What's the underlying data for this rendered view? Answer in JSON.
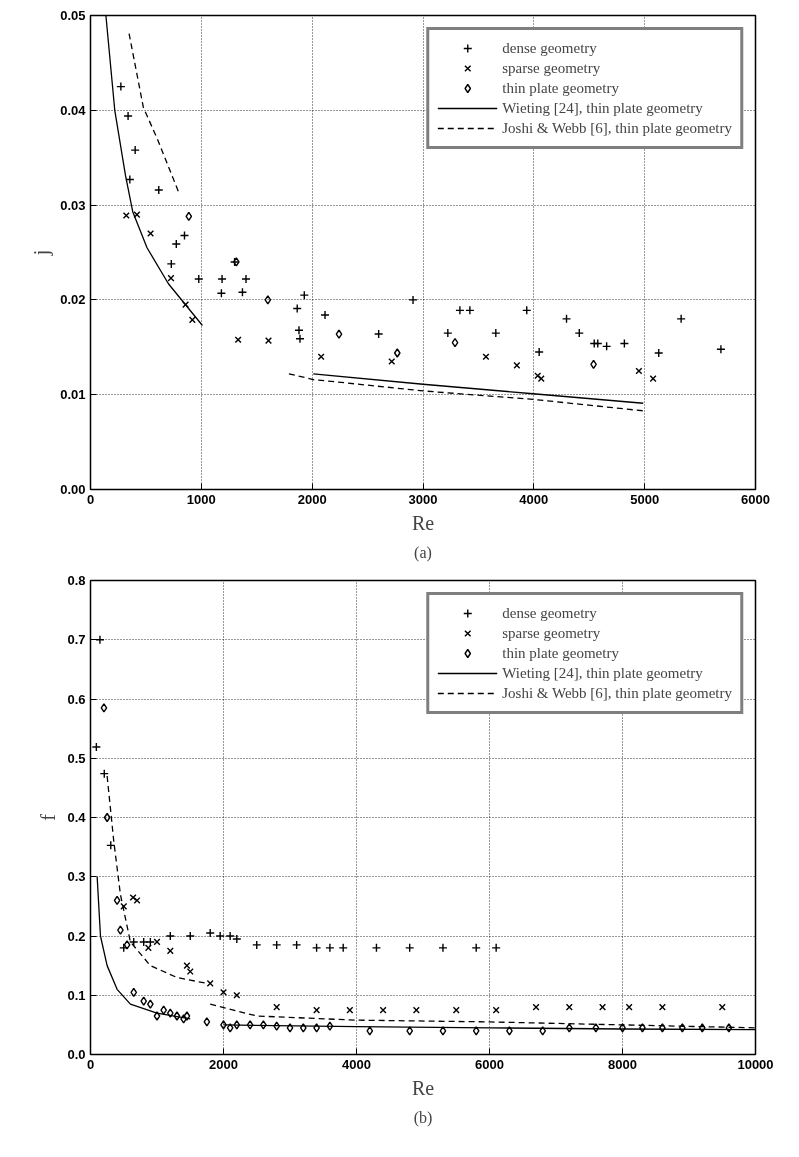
{
  "chart_data": [
    {
      "type": "scatter",
      "xlabel": "Re",
      "ylabel": "j",
      "annotations": [
        "(a)"
      ],
      "xlim": [
        0,
        6000
      ],
      "ylim": [
        0,
        0.05
      ],
      "xticks": [
        0,
        1000,
        2000,
        3000,
        4000,
        5000,
        6000
      ],
      "yticks": [
        {
          "value": 0,
          "label": "0.00"
        },
        {
          "value": 0.01,
          "label": "0.01"
        },
        {
          "value": 0.02,
          "label": "0.02"
        },
        {
          "value": 0.03,
          "label": "0.03"
        },
        {
          "value": 0.04,
          "label": "0.04"
        },
        {
          "value": 0.05,
          "label": "0.05"
        }
      ],
      "grid": true,
      "legend": "top right",
      "series": [
        {
          "name": "dense geometry",
          "color": "#000000",
          "marker": "cross",
          "x": [
            274,
            339,
            403,
            355,
            616,
            848,
            774,
            729,
            977,
            1187,
            1403,
            1181,
            1371,
            1300,
            1929,
            1865,
            2116,
            1881,
            1890,
            2600,
            2910,
            3333,
            3423,
            3224,
            3657,
            3936,
            4048,
            4295,
            4410,
            4545,
            4577,
            4657,
            4817,
            5127,
            5329,
            5688
          ],
          "values": [
            0.0425,
            0.0394,
            0.0358,
            0.0327,
            0.0316,
            0.0268,
            0.0259,
            0.0238,
            0.0222,
            0.0222,
            0.0222,
            0.0207,
            0.0208,
            0.024,
            0.0205,
            0.0191,
            0.0184,
            0.0168,
            0.0159,
            0.0164,
            0.02,
            0.0189,
            0.0189,
            0.0165,
            0.0165,
            0.0189,
            0.0145,
            0.018,
            0.0165,
            0.0154,
            0.0154,
            0.0151,
            0.0154,
            0.0144,
            0.018,
            0.0148
          ]
        },
        {
          "name": "sparse geometry",
          "color": "#000000",
          "marker": "x",
          "x": [
            323,
            419,
            542,
            726,
            858,
            919,
            1332,
            1606,
            2081,
            2718,
            3568,
            3847,
            4035,
            4067,
            4948,
            5076
          ],
          "values": [
            0.0289,
            0.029,
            0.027,
            0.0223,
            0.0195,
            0.0179,
            0.0158,
            0.0157,
            0.014,
            0.0135,
            0.014,
            0.0131,
            0.012,
            0.0117,
            0.0125,
            0.0117
          ]
        },
        {
          "name": "thin plate geometry",
          "color": "#000000",
          "marker": "diamond",
          "x": [
            887,
            1316,
            1600,
            2242,
            2768,
            3289,
            4539
          ],
          "values": [
            0.0288,
            0.024,
            0.02,
            0.0164,
            0.0144,
            0.0155,
            0.0132
          ]
        },
        {
          "name": "Wieting [24], thin plate geometry",
          "type": "line",
          "color": "#000000",
          "marker": "none",
          "line_style": "solid",
          "x": [
            139,
            219,
            316,
            381,
            510,
            703,
            1010
          ],
          "values": [
            0.05,
            0.04,
            0.0331,
            0.0293,
            0.0255,
            0.0217,
            0.0173
          ]
        },
        {
          "type": "line",
          "color": "#000000",
          "marker": "none",
          "line_style": "solid",
          "x": [
            2010,
            3000,
            3993,
            4987
          ],
          "values": [
            0.0122,
            0.0111,
            0.0101,
            0.0091
          ]
        },
        {
          "name": "Joshi & Webb [6], thin plate geometry",
          "type": "line",
          "color": "#000000",
          "marker": "none",
          "line_style": "dashed",
          "x": [
            348,
            477,
            606,
            794
          ],
          "values": [
            0.0481,
            0.0403,
            0.0369,
            0.0314
          ]
        },
        {
          "type": "line",
          "color": "#000000",
          "marker": "none",
          "line_style": "dashed",
          "x": [
            1790,
            2010,
            3000,
            4000,
            4987
          ],
          "values": [
            0.0122,
            0.0116,
            0.0104,
            0.0095,
            0.0083
          ]
        }
      ]
    },
    {
      "type": "scatter",
      "xlabel": "Re",
      "ylabel": "f",
      "annotations": [
        "(b)"
      ],
      "xlim": [
        0,
        10000
      ],
      "ylim": [
        0,
        0.8
      ],
      "xticks": [
        0,
        2000,
        4000,
        6000,
        8000,
        10000
      ],
      "yticks": [
        {
          "value": 0,
          "label": "0.0"
        },
        {
          "value": 0.1,
          "label": "0.1"
        },
        {
          "value": 0.2,
          "label": "0.2"
        },
        {
          "value": 0.3,
          "label": "0.3"
        },
        {
          "value": 0.4,
          "label": "0.4"
        },
        {
          "value": 0.5,
          "label": "0.5"
        },
        {
          "value": 0.6,
          "label": "0.6"
        },
        {
          "value": 0.7,
          "label": "0.7"
        },
        {
          "value": 0.8,
          "label": "0.8"
        }
      ],
      "grid": true,
      "legend": "top right",
      "series": [
        {
          "name": "dense geometry",
          "color": "#000000",
          "marker": "cross",
          "x": [
            142,
            88,
            207,
            305,
            500,
            650,
            800,
            900,
            1200,
            1500,
            1800,
            1950,
            2100,
            2200,
            2500,
            2800,
            3100,
            3400,
            3600,
            3800,
            4300,
            4800,
            5300,
            5800,
            6100
          ],
          "values": [
            0.7,
            0.519,
            0.474,
            0.353,
            0.18,
            0.19,
            0.19,
            0.19,
            0.2,
            0.2,
            0.205,
            0.2,
            0.2,
            0.195,
            0.185,
            0.185,
            0.185,
            0.18,
            0.18,
            0.18,
            0.18,
            0.18,
            0.18,
            0.18,
            0.18
          ]
        },
        {
          "name": "sparse geometry",
          "color": "#000000",
          "marker": "x",
          "x": [
            500,
            640,
            700,
            870,
            1000,
            1200,
            1450,
            1500,
            1800,
            2000,
            2200,
            2800,
            3400,
            3900,
            4400,
            4900,
            5500,
            6100,
            6700,
            7200,
            7700,
            8100,
            8600,
            9500
          ],
          "values": [
            0.25,
            0.265,
            0.26,
            0.18,
            0.19,
            0.175,
            0.15,
            0.14,
            0.12,
            0.105,
            0.1,
            0.08,
            0.075,
            0.075,
            0.075,
            0.075,
            0.075,
            0.075,
            0.08,
            0.08,
            0.08,
            0.08,
            0.08,
            0.08
          ]
        },
        {
          "name": "thin plate geometry",
          "color": "#000000",
          "marker": "diamond",
          "x": [
            202,
            250,
            400,
            450,
            550,
            650,
            800,
            900,
            1000,
            1100,
            1200,
            1300,
            1400,
            1450,
            1750,
            2000,
            2100,
            2200,
            2400,
            2600,
            2800,
            3000,
            3200,
            3400,
            3600,
            4200,
            4800,
            5300,
            5800,
            6300,
            6800,
            7200,
            7600,
            8000,
            8300,
            8600,
            8900,
            9200,
            9600
          ],
          "values": [
            0.585,
            0.4,
            0.26,
            0.21,
            0.185,
            0.105,
            0.09,
            0.085,
            0.065,
            0.075,
            0.07,
            0.065,
            0.06,
            0.065,
            0.055,
            0.05,
            0.045,
            0.05,
            0.05,
            0.05,
            0.048,
            0.045,
            0.045,
            0.045,
            0.048,
            0.04,
            0.04,
            0.04,
            0.04,
            0.04,
            0.04,
            0.045,
            0.045,
            0.045,
            0.045,
            0.045,
            0.045,
            0.045,
            0.045
          ]
        },
        {
          "name": "Wieting [24], thin plate geometry",
          "type": "line",
          "color": "#000000",
          "marker": "none",
          "line_style": "solid",
          "x": [
            100,
            150,
            250,
            400,
            600,
            1000,
            1500
          ],
          "values": [
            0.3,
            0.2,
            0.15,
            0.11,
            0.085,
            0.07,
            0.06
          ]
        },
        {
          "type": "line",
          "color": "#000000",
          "marker": "none",
          "line_style": "solid",
          "x": [
            2000,
            4000,
            6000,
            8000,
            10000
          ],
          "values": [
            0.05,
            0.047,
            0.045,
            0.043,
            0.042
          ]
        },
        {
          "name": "Joshi & Webb [6], thin plate geometry",
          "type": "line",
          "color": "#000000",
          "marker": "none",
          "line_style": "dashed",
          "x": [
            250,
            350,
            450,
            600,
            900,
            1300,
            1750
          ],
          "values": [
            0.47,
            0.36,
            0.27,
            0.19,
            0.15,
            0.13,
            0.12
          ]
        },
        {
          "type": "line",
          "color": "#000000",
          "marker": "none",
          "line_style": "dashed",
          "x": [
            1800,
            2500,
            4000,
            6000,
            8000,
            10000
          ],
          "values": [
            0.085,
            0.065,
            0.058,
            0.055,
            0.05,
            0.045
          ]
        }
      ]
    }
  ]
}
